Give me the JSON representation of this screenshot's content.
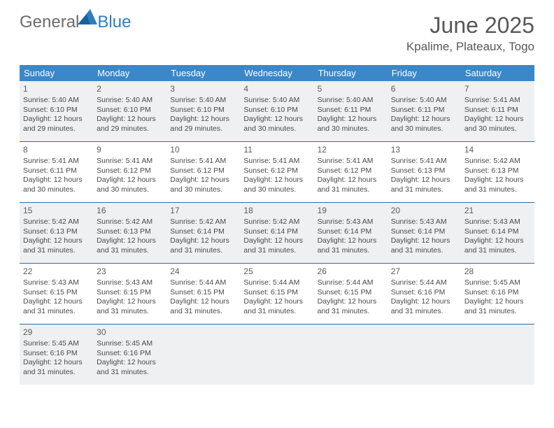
{
  "logo": {
    "textA": "General",
    "textB": "Blue"
  },
  "header": {
    "title": "June 2025",
    "subtitle": "Kpalime, Plateaux, Togo"
  },
  "colors": {
    "header_bg": "#3b87c8",
    "header_text": "#ffffff",
    "rule": "#2f6ca5",
    "shade": "#eef0f2",
    "text": "#4a4a4a",
    "logo_blue": "#2f7dc0",
    "logo_gray": "#6b6b6b"
  },
  "weekdays": [
    "Sunday",
    "Monday",
    "Tuesday",
    "Wednesday",
    "Thursday",
    "Friday",
    "Saturday"
  ],
  "weeks": [
    {
      "shaded": true,
      "days": [
        {
          "n": "1",
          "sr": "5:40 AM",
          "ss": "6:10 PM",
          "dl": "12 hours and 29 minutes."
        },
        {
          "n": "2",
          "sr": "5:40 AM",
          "ss": "6:10 PM",
          "dl": "12 hours and 29 minutes."
        },
        {
          "n": "3",
          "sr": "5:40 AM",
          "ss": "6:10 PM",
          "dl": "12 hours and 29 minutes."
        },
        {
          "n": "4",
          "sr": "5:40 AM",
          "ss": "6:10 PM",
          "dl": "12 hours and 30 minutes."
        },
        {
          "n": "5",
          "sr": "5:40 AM",
          "ss": "6:11 PM",
          "dl": "12 hours and 30 minutes."
        },
        {
          "n": "6",
          "sr": "5:40 AM",
          "ss": "6:11 PM",
          "dl": "12 hours and 30 minutes."
        },
        {
          "n": "7",
          "sr": "5:41 AM",
          "ss": "6:11 PM",
          "dl": "12 hours and 30 minutes."
        }
      ]
    },
    {
      "shaded": false,
      "days": [
        {
          "n": "8",
          "sr": "5:41 AM",
          "ss": "6:11 PM",
          "dl": "12 hours and 30 minutes."
        },
        {
          "n": "9",
          "sr": "5:41 AM",
          "ss": "6:12 PM",
          "dl": "12 hours and 30 minutes."
        },
        {
          "n": "10",
          "sr": "5:41 AM",
          "ss": "6:12 PM",
          "dl": "12 hours and 30 minutes."
        },
        {
          "n": "11",
          "sr": "5:41 AM",
          "ss": "6:12 PM",
          "dl": "12 hours and 30 minutes."
        },
        {
          "n": "12",
          "sr": "5:41 AM",
          "ss": "6:12 PM",
          "dl": "12 hours and 31 minutes."
        },
        {
          "n": "13",
          "sr": "5:41 AM",
          "ss": "6:13 PM",
          "dl": "12 hours and 31 minutes."
        },
        {
          "n": "14",
          "sr": "5:42 AM",
          "ss": "6:13 PM",
          "dl": "12 hours and 31 minutes."
        }
      ]
    },
    {
      "shaded": true,
      "days": [
        {
          "n": "15",
          "sr": "5:42 AM",
          "ss": "6:13 PM",
          "dl": "12 hours and 31 minutes."
        },
        {
          "n": "16",
          "sr": "5:42 AM",
          "ss": "6:13 PM",
          "dl": "12 hours and 31 minutes."
        },
        {
          "n": "17",
          "sr": "5:42 AM",
          "ss": "6:14 PM",
          "dl": "12 hours and 31 minutes."
        },
        {
          "n": "18",
          "sr": "5:42 AM",
          "ss": "6:14 PM",
          "dl": "12 hours and 31 minutes."
        },
        {
          "n": "19",
          "sr": "5:43 AM",
          "ss": "6:14 PM",
          "dl": "12 hours and 31 minutes."
        },
        {
          "n": "20",
          "sr": "5:43 AM",
          "ss": "6:14 PM",
          "dl": "12 hours and 31 minutes."
        },
        {
          "n": "21",
          "sr": "5:43 AM",
          "ss": "6:14 PM",
          "dl": "12 hours and 31 minutes."
        }
      ]
    },
    {
      "shaded": false,
      "days": [
        {
          "n": "22",
          "sr": "5:43 AM",
          "ss": "6:15 PM",
          "dl": "12 hours and 31 minutes."
        },
        {
          "n": "23",
          "sr": "5:43 AM",
          "ss": "6:15 PM",
          "dl": "12 hours and 31 minutes."
        },
        {
          "n": "24",
          "sr": "5:44 AM",
          "ss": "6:15 PM",
          "dl": "12 hours and 31 minutes."
        },
        {
          "n": "25",
          "sr": "5:44 AM",
          "ss": "6:15 PM",
          "dl": "12 hours and 31 minutes."
        },
        {
          "n": "26",
          "sr": "5:44 AM",
          "ss": "6:15 PM",
          "dl": "12 hours and 31 minutes."
        },
        {
          "n": "27",
          "sr": "5:44 AM",
          "ss": "6:16 PM",
          "dl": "12 hours and 31 minutes."
        },
        {
          "n": "28",
          "sr": "5:45 AM",
          "ss": "6:16 PM",
          "dl": "12 hours and 31 minutes."
        }
      ]
    },
    {
      "shaded": true,
      "days": [
        {
          "n": "29",
          "sr": "5:45 AM",
          "ss": "6:16 PM",
          "dl": "12 hours and 31 minutes."
        },
        {
          "n": "30",
          "sr": "5:45 AM",
          "ss": "6:16 PM",
          "dl": "12 hours and 31 minutes."
        },
        {
          "empty": true
        },
        {
          "empty": true
        },
        {
          "empty": true
        },
        {
          "empty": true
        },
        {
          "empty": true
        }
      ]
    }
  ],
  "labels": {
    "sunrise": "Sunrise:",
    "sunset": "Sunset:",
    "daylight": "Daylight:"
  }
}
